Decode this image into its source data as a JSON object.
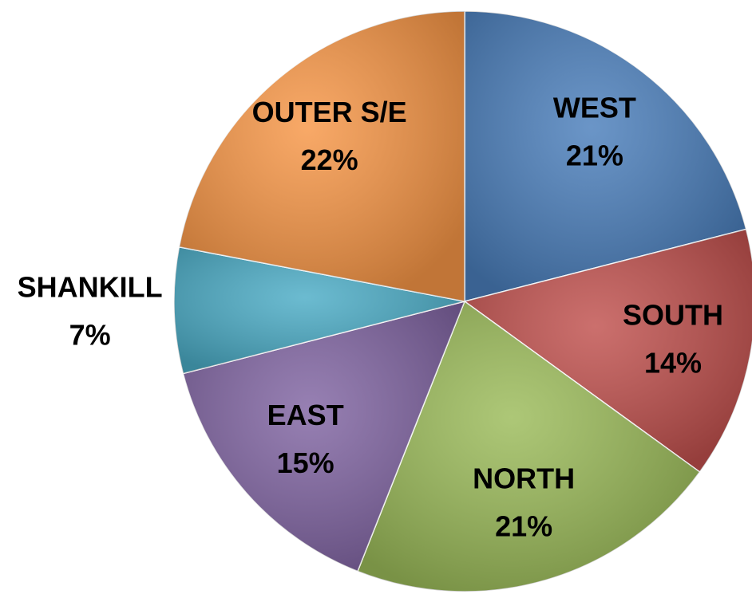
{
  "chart_data": {
    "type": "pie",
    "categories": [
      "WEST",
      "SOUTH",
      "NORTH",
      "EAST",
      "SHANKILL",
      "OUTER S/E"
    ],
    "values": [
      21,
      14,
      21,
      15,
      7,
      22
    ],
    "value_labels": [
      "21%",
      "14%",
      "21%",
      "15%",
      "7%",
      "22%"
    ],
    "colors": [
      "#4a7ebb",
      "#c0504d",
      "#9bbb59",
      "#8064a2",
      "#4bacc6",
      "#f79646"
    ]
  }
}
